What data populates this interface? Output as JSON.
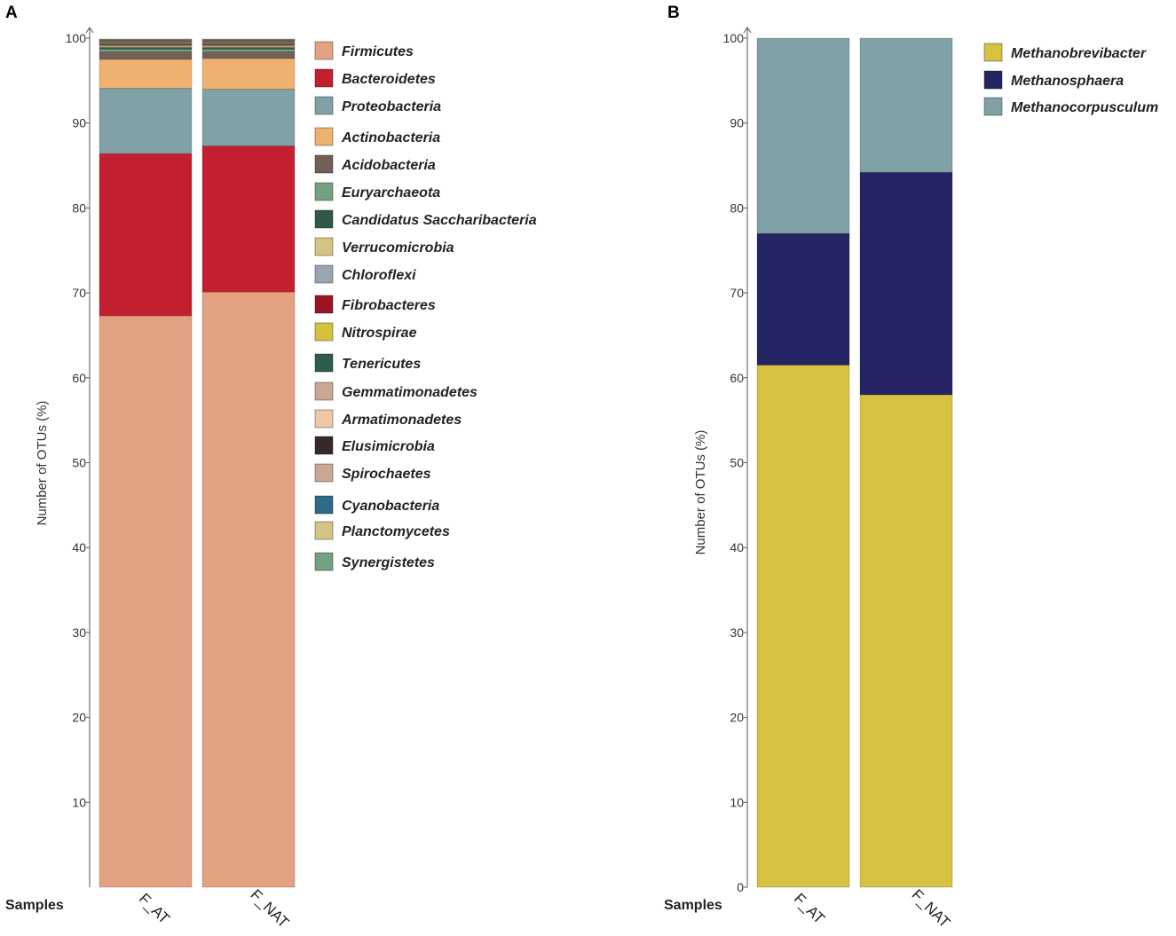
{
  "samples_label": "Samples",
  "chart_data": [
    {
      "type": "bar",
      "stacked": true,
      "panel": "A",
      "ylabel": "Number  of  OTUs (%)",
      "ylim": [
        0,
        100
      ],
      "yticks": [
        10,
        20,
        30,
        40,
        50,
        60,
        70,
        80,
        90,
        100
      ],
      "ytick_labels": [
        "10",
        "20",
        "30",
        "40",
        "50",
        "60",
        "70",
        "80",
        "90",
        "100"
      ],
      "categories": [
        "F_AT",
        "F_NAT"
      ],
      "legend_position": "right",
      "series": [
        {
          "name": "Firmicutes",
          "color": "#e3a282",
          "values": [
            67.3,
            70.1
          ]
        },
        {
          "name": "Bacteroidetes",
          "color": "#c21f30",
          "values": [
            19.1,
            17.2
          ]
        },
        {
          "name": "Proteobacteria",
          "color": "#80a1a5",
          "values": [
            7.7,
            6.7
          ]
        },
        {
          "name": "Actinobacteria",
          "color": "#efb16f",
          "values": [
            3.4,
            3.6
          ]
        },
        {
          "name": "Acidobacteria",
          "color": "#725f58",
          "values": [
            0.9,
            0.8
          ]
        },
        {
          "name": "Euryarchaeota",
          "color": "#75a082",
          "values": [
            0.3,
            0.3
          ]
        },
        {
          "name": "Candidatus Saccharibacteria",
          "color": "#2e5a47",
          "values": [
            0.2,
            0.2
          ]
        },
        {
          "name": "Verrucomicrobia",
          "color": "#d3c484",
          "values": [
            0.15,
            0.15
          ]
        },
        {
          "name": "Chloroflexi",
          "color": "#9aa5b4",
          "values": [
            0.12,
            0.12
          ]
        },
        {
          "name": "Fibrobacteres",
          "color": "#9c1421",
          "values": [
            0.1,
            0.1
          ]
        },
        {
          "name": "Nitrospirae",
          "color": "#d6c13d",
          "values": [
            0.1,
            0.1
          ]
        },
        {
          "name": "Tenericutes",
          "color": "#2d5e4b",
          "values": [
            0.1,
            0.1
          ]
        },
        {
          "name": "Gemmatimonadetes",
          "color": "#c8a894",
          "values": [
            0.08,
            0.08
          ]
        },
        {
          "name": "Armatimonadetes",
          "color": "#efc8aa",
          "values": [
            0.08,
            0.08
          ]
        },
        {
          "name": "Elusimicrobia",
          "color": "#382827",
          "values": [
            0.07,
            0.07
          ]
        },
        {
          "name": "Spirochaetes",
          "color": "#c8a894",
          "values": [
            0.06,
            0.06
          ]
        },
        {
          "name": "Cyanobacteria",
          "color": "#2d6b86",
          "values": [
            0.05,
            0.05
          ]
        },
        {
          "name": "Planctomycetes",
          "color": "#d3c484",
          "values": [
            0.05,
            0.05
          ]
        },
        {
          "name": "Synergistetes",
          "color": "#75a082",
          "values": [
            0.04,
            0.04
          ]
        }
      ]
    },
    {
      "type": "bar",
      "stacked": true,
      "panel": "B",
      "ylabel": "Number  of  OTUs (%)",
      "ylim": [
        0,
        100
      ],
      "yticks": [
        0,
        10,
        20,
        30,
        40,
        50,
        60,
        70,
        80,
        90,
        100
      ],
      "ytick_labels": [
        "0",
        "10",
        "20",
        "30",
        "40",
        "50",
        "60",
        "70",
        "80",
        "90",
        "100"
      ],
      "categories": [
        "F_AT",
        "F_NAT"
      ],
      "legend_position": "right",
      "series": [
        {
          "name": "Methanobrevibacter",
          "color": "#d6c240",
          "values": [
            61.5,
            58.0
          ]
        },
        {
          "name": "Methanosphaera",
          "color": "#242464",
          "values": [
            15.5,
            26.2
          ]
        },
        {
          "name": "Methanocorpusculum",
          "color": "#80a1a5",
          "values": [
            23.0,
            15.8
          ]
        }
      ]
    }
  ]
}
